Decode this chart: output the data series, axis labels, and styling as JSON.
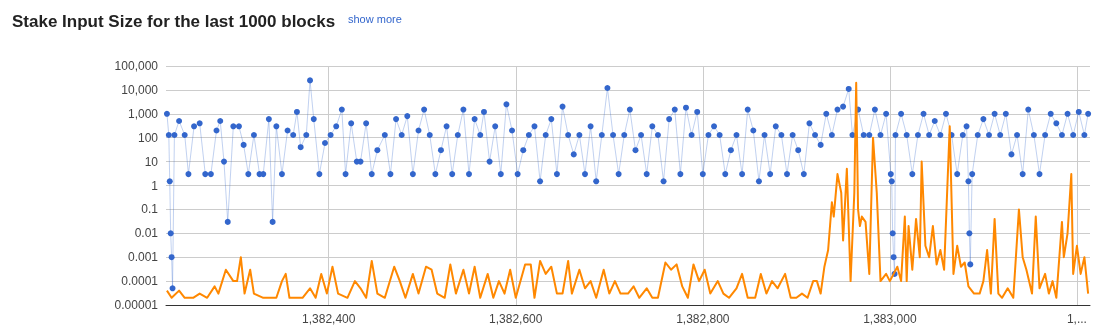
{
  "chart_data": {
    "type": "line",
    "title": "Stake Input Size for the last 1000 blocks",
    "annotations": [
      "show more"
    ],
    "log": "y",
    "grid": true,
    "xlim": [
      1382226,
      1383214
    ],
    "xticks": [
      {
        "value": 1382400,
        "label": "1,382,400"
      },
      {
        "value": 1382600,
        "label": "1,382,600"
      },
      {
        "value": 1382800,
        "label": "1,382,800"
      },
      {
        "value": 1383000,
        "label": "1,383,000"
      },
      {
        "value": 1383200,
        "label": "1,..."
      }
    ],
    "ylim": [
      1e-05,
      100000
    ],
    "yticks": [
      {
        "value": 1e-05,
        "label": "0.00001"
      },
      0.0001,
      0.001,
      0.01,
      0.1,
      1,
      10,
      100,
      {
        "value": 1000,
        "label": "1,000"
      },
      {
        "value": 10000,
        "label": "10,000"
      },
      {
        "value": 100000,
        "label": "100,000"
      }
    ],
    "series": [
      {
        "color": "#3366cc",
        "marker": "circle",
        "x": [
          1382227,
          1382229,
          1382230,
          1382231,
          1382232,
          1382233,
          1382235,
          1382240,
          1382246,
          1382250,
          1382256,
          1382262,
          1382268,
          1382274,
          1382280,
          1382284,
          1382288,
          1382292,
          1382298,
          1382304,
          1382309,
          1382314,
          1382320,
          1382326,
          1382330,
          1382336,
          1382340,
          1382344,
          1382350,
          1382356,
          1382362,
          1382366,
          1382370,
          1382376,
          1382380,
          1382384,
          1382390,
          1382396,
          1382402,
          1382408,
          1382414,
          1382418,
          1382424,
          1382430,
          1382434,
          1382440,
          1382446,
          1382452,
          1382460,
          1382466,
          1382472,
          1382478,
          1382484,
          1382490,
          1382496,
          1382502,
          1382508,
          1382514,
          1382520,
          1382526,
          1382532,
          1382538,
          1382544,
          1382550,
          1382556,
          1382562,
          1382566,
          1382572,
          1382578,
          1382584,
          1382590,
          1382596,
          1382602,
          1382608,
          1382614,
          1382620,
          1382626,
          1382632,
          1382638,
          1382644,
          1382650,
          1382656,
          1382662,
          1382668,
          1382674,
          1382680,
          1382686,
          1382692,
          1382698,
          1382704,
          1382710,
          1382716,
          1382722,
          1382728,
          1382734,
          1382740,
          1382746,
          1382752,
          1382758,
          1382764,
          1382770,
          1382776,
          1382782,
          1382788,
          1382794,
          1382800,
          1382806,
          1382812,
          1382818,
          1382824,
          1382830,
          1382836,
          1382842,
          1382848,
          1382854,
          1382860,
          1382866,
          1382872,
          1382878,
          1382884,
          1382890,
          1382896,
          1382902,
          1382908,
          1382914,
          1382920,
          1382926,
          1382932,
          1382938,
          1382944,
          1382950,
          1382956,
          1382960,
          1382966,
          1382972,
          1382978,
          1382984,
          1382990,
          1382996,
          1383001,
          1383002,
          1383003,
          1383004,
          1383005,
          1383006,
          1383012,
          1383018,
          1383024,
          1383030,
          1383036,
          1383042,
          1383048,
          1383054,
          1383060,
          1383066,
          1383072,
          1383078,
          1383082,
          1383084,
          1383085,
          1383086,
          1383088,
          1383094,
          1383100,
          1383106,
          1383112,
          1383118,
          1383124,
          1383130,
          1383136,
          1383142,
          1383148,
          1383154,
          1383160,
          1383166,
          1383172,
          1383178,
          1383184,
          1383190,
          1383196,
          1383202,
          1383208,
          1383212
        ],
        "values": [
          1000,
          130,
          1.5,
          0.01,
          0.001,
          5e-05,
          130,
          500,
          130,
          3,
          300,
          400,
          3,
          3,
          200,
          500,
          10,
          0.03,
          300,
          300,
          50,
          3,
          130,
          3,
          3,
          600,
          0.03,
          300,
          3,
          200,
          130,
          1200,
          40,
          130,
          25000,
          600,
          3,
          60,
          130,
          300,
          1500,
          3,
          400,
          10,
          10,
          400,
          3,
          30,
          130,
          3,
          600,
          130,
          800,
          3,
          200,
          1500,
          130,
          3,
          30,
          300,
          3,
          130,
          1500,
          3,
          600,
          130,
          1200,
          10,
          300,
          3,
          2500,
          200,
          3,
          30,
          130,
          300,
          1.5,
          130,
          600,
          3,
          2000,
          130,
          20,
          130,
          3,
          300,
          1.5,
          130,
          12000,
          130,
          3,
          130,
          1500,
          30,
          130,
          3,
          300,
          130,
          1.5,
          600,
          1500,
          3,
          1800,
          130,
          1200,
          3,
          130,
          300,
          130,
          3,
          30,
          130,
          3,
          1500,
          200,
          1.5,
          130,
          3,
          300,
          130,
          3,
          130,
          30,
          3,
          400,
          130,
          50,
          1000,
          130,
          1500,
          2000,
          11000,
          130,
          1500,
          130,
          130,
          1500,
          130,
          1000,
          3,
          1.5,
          0.01,
          0.001,
          0.0002,
          130,
          1000,
          130,
          3,
          130,
          1000,
          130,
          500,
          130,
          1000,
          130,
          3,
          130,
          300,
          1.5,
          0.01,
          0.0005,
          3,
          130,
          600,
          130,
          1000,
          130,
          1000,
          20,
          130,
          3,
          1500,
          130,
          3,
          130,
          1000,
          400,
          130,
          1000,
          130,
          1200,
          130,
          1000
        ]
      },
      {
        "color": "#ff8800",
        "marker": "none",
        "x": [
          1382227,
          1382232,
          1382240,
          1382246,
          1382255,
          1382262,
          1382270,
          1382278,
          1382282,
          1382290,
          1382298,
          1382302,
          1382306,
          1382310,
          1382316,
          1382320,
          1382330,
          1382344,
          1382350,
          1382354,
          1382358,
          1382372,
          1382380,
          1382386,
          1382392,
          1382398,
          1382404,
          1382410,
          1382420,
          1382428,
          1382434,
          1382440,
          1382446,
          1382452,
          1382460,
          1382470,
          1382476,
          1382482,
          1382490,
          1382496,
          1382504,
          1382510,
          1382516,
          1382524,
          1382530,
          1382536,
          1382544,
          1382550,
          1382556,
          1382562,
          1382570,
          1382576,
          1382582,
          1382588,
          1382594,
          1382600,
          1382610,
          1382616,
          1382620,
          1382626,
          1382632,
          1382638,
          1382644,
          1382650,
          1382656,
          1382660,
          1382668,
          1382674,
          1382680,
          1382686,
          1382694,
          1382700,
          1382706,
          1382712,
          1382720,
          1382726,
          1382732,
          1382740,
          1382746,
          1382752,
          1382760,
          1382766,
          1382772,
          1382778,
          1382784,
          1382790,
          1382796,
          1382802,
          1382808,
          1382816,
          1382822,
          1382828,
          1382836,
          1382842,
          1382848,
          1382856,
          1382862,
          1382868,
          1382874,
          1382880,
          1382888,
          1382894,
          1382900,
          1382906,
          1382912,
          1382918,
          1382922,
          1382926,
          1382930,
          1382934,
          1382938,
          1382940,
          1382944,
          1382948,
          1382950,
          1382954,
          1382958,
          1382962,
          1382964,
          1382966,
          1382968,
          1382970,
          1382974,
          1382978,
          1382982,
          1382986,
          1382990,
          1382996,
          1383000,
          1383004,
          1383008,
          1383012,
          1383016,
          1383018,
          1383020,
          1383024,
          1383028,
          1383032,
          1383034,
          1383038,
          1383042,
          1383046,
          1383050,
          1383054,
          1383058,
          1383064,
          1383068,
          1383072,
          1383076,
          1383080,
          1383084,
          1383090,
          1383096,
          1383100,
          1383104,
          1383108,
          1383112,
          1383116,
          1383120,
          1383126,
          1383132,
          1383138,
          1383142,
          1383146,
          1383152,
          1383156,
          1383160,
          1383166,
          1383170,
          1383174,
          1383178,
          1383184,
          1383186,
          1383190,
          1383194,
          1383196,
          1383200,
          1383204,
          1383208,
          1383212
        ],
        "values": [
          4e-05,
          2e-05,
          4e-05,
          2e-05,
          2e-05,
          3e-05,
          2e-05,
          6e-05,
          3e-05,
          0.0003,
          0.0001,
          0.0001,
          0.001,
          3e-05,
          0.0003,
          3e-05,
          2e-05,
          2e-05,
          0.0001,
          0.0002,
          2e-05,
          2e-05,
          5e-05,
          2e-05,
          0.0002,
          3e-05,
          0.0004,
          3e-05,
          2e-05,
          0.0001,
          5e-05,
          2e-05,
          0.0007,
          3e-05,
          2e-05,
          0.0004,
          0.0001,
          2e-05,
          0.0002,
          3e-05,
          0.0004,
          0.0003,
          3e-05,
          2e-05,
          0.0005,
          3e-05,
          0.0003,
          3e-05,
          0.0004,
          2e-05,
          0.0002,
          2e-05,
          0.0001,
          3e-05,
          0.0003,
          2e-05,
          0.0005,
          0.0005,
          2e-05,
          0.0007,
          0.0002,
          0.0004,
          3e-05,
          3e-05,
          0.0007,
          3e-05,
          0.0003,
          5e-05,
          0.0001,
          2e-05,
          0.0003,
          3e-05,
          0.0001,
          3e-05,
          3e-05,
          6e-05,
          2e-05,
          5e-05,
          2e-05,
          2e-05,
          0.0006,
          0.0003,
          0.0005,
          6e-05,
          2e-05,
          0.0005,
          0.0001,
          0.0003,
          3e-05,
          0.0001,
          3e-05,
          2e-05,
          5e-05,
          0.0002,
          2e-05,
          2e-05,
          0.0002,
          3e-05,
          0.0001,
          5e-05,
          0.0002,
          2e-05,
          2e-05,
          3e-05,
          2e-05,
          0.0001,
          0.0001,
          3e-05,
          0.0004,
          0.002,
          0.2,
          0.05,
          3,
          0.5,
          0.005,
          5,
          0.0001,
          0.5,
          20000,
          0.1,
          0.02,
          0.05,
          0.03,
          0.0002,
          100,
          0.5,
          0.0001,
          0.0002,
          0.0001,
          0.0002,
          0.0004,
          0.0001,
          0.05,
          0.0001,
          0.02,
          0.0003,
          0.04,
          0.001,
          10,
          0.003,
          0.001,
          0.02,
          0.0005,
          0.002,
          0.0003,
          300,
          0.0002,
          0.003,
          0.0004,
          0.0006,
          6e-05,
          3e-05,
          3e-05,
          0.0001,
          0.002,
          3e-05,
          0.04,
          3e-05,
          2e-05,
          5e-05,
          2e-05,
          0.1,
          0.001,
          0.0003,
          3e-05,
          0.05,
          5e-05,
          0.0002,
          3e-05,
          0.0001,
          2e-05,
          0.03,
          0.001,
          0.01,
          3,
          0.0002,
          0.003,
          0.0002,
          0.001,
          3e-05
        ]
      }
    ]
  }
}
